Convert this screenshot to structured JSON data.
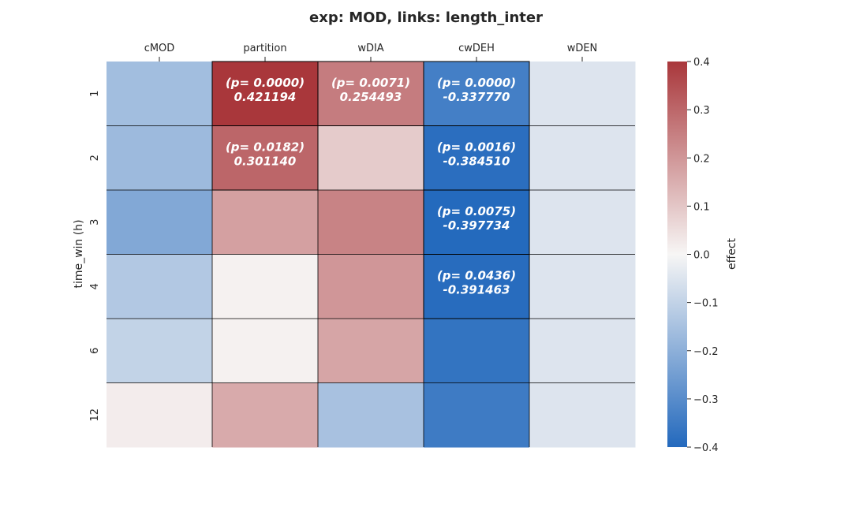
{
  "chart_data": {
    "type": "heatmap",
    "title": "exp: MOD, links: length_inter",
    "xlabel": "",
    "ylabel": "time_win (h)",
    "columns": [
      "cMOD",
      "partition",
      "wDIA",
      "cwDEH",
      "wDEN"
    ],
    "rows": [
      "1",
      "2",
      "3",
      "4",
      "6",
      "12"
    ],
    "values": [
      [
        -0.16,
        0.421194,
        0.254493,
        -0.33777,
        -0.05
      ],
      [
        -0.17,
        0.30114,
        0.09,
        -0.38451,
        -0.05
      ],
      [
        -0.22,
        0.18,
        0.24,
        -0.397734,
        -0.05
      ],
      [
        -0.13,
        0.01,
        0.2,
        -0.391463,
        -0.05
      ],
      [
        -0.1,
        0.01,
        0.17,
        -0.37,
        -0.05
      ],
      [
        0.02,
        0.16,
        -0.15,
        -0.35,
        -0.05
      ]
    ],
    "annotations": [
      [
        null,
        "(p= 0.0000)\n0.421194",
        "(p= 0.0071)\n0.254493",
        "(p= 0.0000)\n-0.337770",
        null
      ],
      [
        null,
        "(p= 0.0182)\n0.301140",
        null,
        "(p= 0.0016)\n-0.384510",
        null
      ],
      [
        null,
        null,
        null,
        "(p= 0.0075)\n-0.397734",
        null
      ],
      [
        null,
        null,
        null,
        "(p= 0.0436)\n-0.391463",
        null
      ],
      [
        null,
        null,
        null,
        null,
        null
      ],
      [
        null,
        null,
        null,
        null,
        null
      ]
    ],
    "colorbar": {
      "label": "effect",
      "vmin": -0.4,
      "vmax": 0.4,
      "ticks": [
        0.4,
        0.3,
        0.2,
        0.1,
        0.0,
        -0.1,
        -0.2,
        -0.3,
        -0.4
      ],
      "tick_labels": [
        "0.4",
        "0.3",
        "0.2",
        "0.1",
        "0.0",
        "−0.1",
        "−0.2",
        "−0.3",
        "−0.4"
      ],
      "colormap": "vlag",
      "colors": {
        "low": "#2369bd",
        "mid": "#f7f6f5",
        "high": "#a9373b"
      }
    }
  }
}
